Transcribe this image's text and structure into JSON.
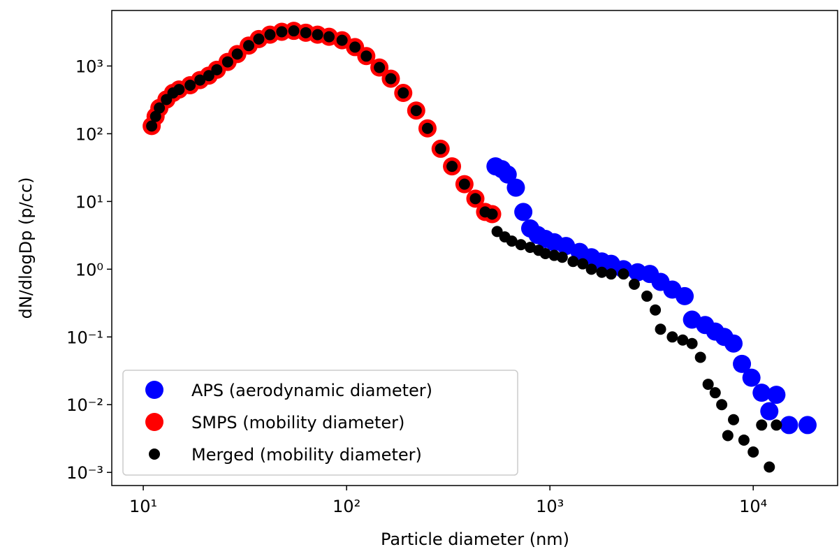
{
  "chart_data": {
    "type": "scatter",
    "xlabel": "Particle diameter (nm)",
    "ylabel": "dN/dlogDp (p/cc)",
    "xlog": true,
    "ylog": true,
    "xlim": [
      7,
      26000
    ],
    "ylim": [
      0.00064,
      6600
    ],
    "xticks": [
      {
        "value": 10,
        "label": "10¹"
      },
      {
        "value": 100,
        "label": "10²"
      },
      {
        "value": 1000,
        "label": "10³"
      },
      {
        "value": 10000,
        "label": "10⁴"
      }
    ],
    "yticks": [
      {
        "value": 0.001,
        "label": "10⁻³"
      },
      {
        "value": 0.01,
        "label": "10⁻²"
      },
      {
        "value": 0.1,
        "label": "10⁻¹"
      },
      {
        "value": 1,
        "label": "10⁰"
      },
      {
        "value": 10,
        "label": "10¹"
      },
      {
        "value": 100,
        "label": "10²"
      },
      {
        "value": 1000,
        "label": "10³"
      }
    ],
    "legend": "lower left",
    "series": [
      {
        "name": "APS (aerodynamic diameter)",
        "color": "#0000ff",
        "x": [
          540,
          580,
          620,
          680,
          740,
          800,
          870,
          950,
          1050,
          1200,
          1400,
          1600,
          1800,
          2000,
          2300,
          2700,
          3100,
          3500,
          4000,
          4600,
          5000,
          5800,
          6500,
          7200,
          8000,
          8800,
          9800,
          11000,
          12000,
          13000,
          15000,
          18500
        ],
        "values": [
          33,
          30,
          25,
          16,
          7,
          4,
          3.2,
          2.8,
          2.5,
          2.2,
          1.8,
          1.5,
          1.3,
          1.2,
          1.0,
          0.9,
          0.85,
          0.65,
          0.5,
          0.4,
          0.18,
          0.15,
          0.12,
          0.1,
          0.08,
          0.04,
          0.025,
          0.015,
          0.008,
          0.014,
          0.005,
          0.005
        ]
      },
      {
        "name": "SMPS (mobility diameter)",
        "color": "#ff0000",
        "x": [
          11,
          11.5,
          12,
          13,
          14,
          15,
          17,
          19,
          21,
          23,
          26,
          29,
          33,
          37,
          42,
          48,
          55,
          63,
          72,
          82,
          95,
          110,
          125,
          145,
          165,
          190,
          220,
          250,
          290,
          330,
          380,
          430,
          480,
          520
        ],
        "values": [
          130,
          180,
          240,
          320,
          400,
          450,
          520,
          620,
          720,
          880,
          1150,
          1500,
          2000,
          2500,
          2900,
          3200,
          3300,
          3100,
          2900,
          2700,
          2400,
          1900,
          1400,
          950,
          650,
          400,
          220,
          120,
          60,
          33,
          18,
          11,
          7,
          6.5
        ]
      },
      {
        "name": "Merged (mobility diameter)",
        "color": "#000000",
        "x": [
          11,
          11.5,
          12,
          13,
          14,
          15,
          17,
          19,
          21,
          23,
          26,
          29,
          33,
          37,
          42,
          48,
          55,
          63,
          72,
          82,
          95,
          110,
          125,
          145,
          165,
          190,
          220,
          250,
          290,
          330,
          380,
          430,
          480,
          520,
          550,
          600,
          650,
          720,
          800,
          880,
          950,
          1050,
          1150,
          1300,
          1450,
          1600,
          1800,
          2000,
          2300,
          2600,
          3000,
          3300,
          3500,
          4000,
          4500,
          5000,
          5500,
          6000,
          6500,
          7000,
          7500,
          8000,
          9000,
          10000,
          11000,
          12000,
          13000
        ],
        "values": [
          130,
          180,
          240,
          320,
          400,
          450,
          520,
          620,
          720,
          880,
          1150,
          1500,
          2000,
          2500,
          2900,
          3200,
          3300,
          3100,
          2900,
          2700,
          2400,
          1900,
          1400,
          950,
          650,
          400,
          220,
          120,
          60,
          33,
          18,
          11,
          7,
          6.5,
          3.6,
          3.0,
          2.6,
          2.3,
          2.1,
          1.9,
          1.7,
          1.6,
          1.5,
          1.3,
          1.2,
          1.0,
          0.9,
          0.85,
          0.85,
          0.6,
          0.4,
          0.25,
          0.13,
          0.1,
          0.09,
          0.08,
          0.05,
          0.02,
          0.015,
          0.01,
          0.0035,
          0.006,
          0.003,
          0.002,
          0.005,
          0.0012,
          0.005
        ]
      }
    ]
  }
}
